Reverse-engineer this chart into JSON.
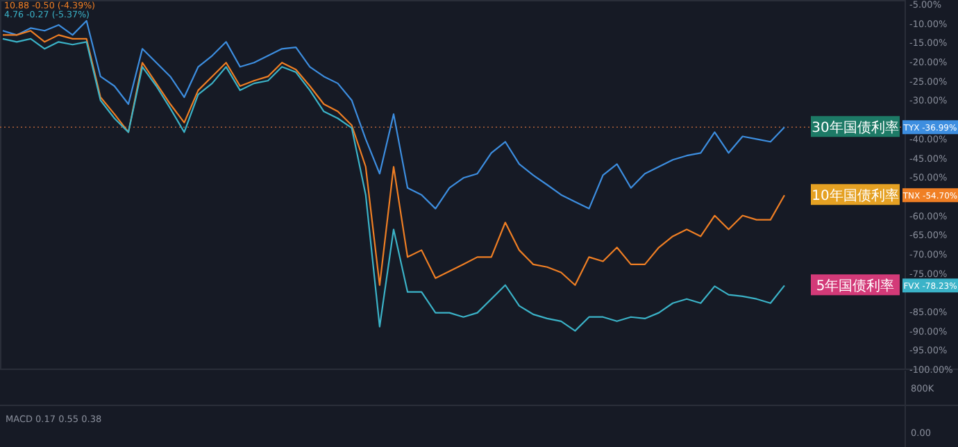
{
  "chart_data": [
    {
      "type": "line",
      "categories": [
        null,
        null,
        null,
        null,
        null,
        null,
        null,
        null,
        null,
        null,
        null,
        null,
        null,
        null,
        null,
        null,
        null,
        null,
        null,
        null,
        null,
        null,
        null,
        null,
        null,
        null,
        null,
        null,
        null,
        null,
        null,
        null,
        null,
        null,
        null,
        null,
        null,
        null,
        null,
        null,
        null,
        null,
        null,
        null,
        null,
        null,
        null,
        null,
        null,
        null,
        null,
        null,
        null,
        null,
        null,
        null,
        null
      ],
      "series": [
        {
          "name": "30年国债利率",
          "color": "#3d8ee0",
          "values": [
            -11.9,
            -13.0,
            -11.2,
            -11.9,
            -10.4,
            -13.0,
            -9.3,
            -23.8,
            -26.3,
            -31.0,
            -16.6,
            -20.2,
            -23.8,
            -29.2,
            -21.3,
            -18.4,
            -14.8,
            -21.3,
            -20.2,
            -18.4,
            -16.6,
            -16.2,
            -21.3,
            -23.8,
            -25.6,
            -30.0,
            -40.1,
            -49.1,
            -33.6,
            -52.8,
            -54.6,
            -58.2,
            -52.8,
            -50.2,
            -49.1,
            -43.7,
            -40.8,
            -46.6,
            -49.5,
            -52.0,
            -54.6,
            -56.4,
            -58.2,
            -49.5,
            -46.6,
            -52.8,
            -49.1,
            -47.3,
            -45.5,
            -44.4,
            -43.7,
            -38.3,
            -43.7,
            -39.4,
            -40.1,
            -40.8,
            -37.0
          ]
        },
        {
          "name": "10年国债利率",
          "color": "#f07f24",
          "values": [
            -13.0,
            -13.0,
            -11.9,
            -14.8,
            -13.0,
            -14.0,
            -14.0,
            -29.2,
            -33.6,
            -38.3,
            -20.2,
            -25.6,
            -31.0,
            -35.8,
            -27.4,
            -23.8,
            -20.2,
            -26.3,
            -24.9,
            -23.8,
            -20.2,
            -22.0,
            -26.3,
            -31.0,
            -32.9,
            -36.5,
            -47.3,
            -78.1,
            -47.3,
            -70.8,
            -69.0,
            -76.3,
            -74.5,
            -72.7,
            -70.8,
            -70.8,
            -61.8,
            -69.0,
            -72.7,
            -73.4,
            -74.8,
            -78.1,
            -70.8,
            -71.9,
            -68.3,
            -72.7,
            -72.7,
            -68.3,
            -65.4,
            -63.6,
            -65.4,
            -60.0,
            -63.6,
            -60.0,
            -61.1,
            -61.1,
            -54.7
          ]
        },
        {
          "name": "5年国债利率",
          "color": "#3bb3c8",
          "values": [
            -14.0,
            -14.8,
            -14.0,
            -16.6,
            -14.8,
            -15.5,
            -14.8,
            -30.0,
            -34.7,
            -38.3,
            -21.3,
            -26.3,
            -32.1,
            -38.3,
            -28.5,
            -25.6,
            -21.3,
            -27.4,
            -25.6,
            -24.9,
            -21.3,
            -22.7,
            -27.4,
            -32.9,
            -34.7,
            -37.2,
            -54.6,
            -88.9,
            -63.6,
            -79.9,
            -79.9,
            -85.3,
            -85.3,
            -86.4,
            -85.3,
            -81.7,
            -78.1,
            -83.5,
            -85.7,
            -86.8,
            -87.5,
            -90.0,
            -86.4,
            -86.4,
            -87.5,
            -86.4,
            -86.8,
            -85.3,
            -82.8,
            -81.7,
            -82.8,
            -78.4,
            -80.6,
            -81.0,
            -81.7,
            -82.8,
            -78.2
          ]
        }
      ],
      "ylim": [
        -100,
        -3.9
      ],
      "legend": "right",
      "yticks": [
        {
          "value": -5,
          "label": "-5.00%"
        },
        {
          "value": -10,
          "label": "-10.00%"
        },
        {
          "value": -15,
          "label": "-15.00%"
        },
        {
          "value": -20,
          "label": "-20.00%"
        },
        {
          "value": -25,
          "label": "-25.00%"
        },
        {
          "value": -30,
          "label": "-30.00%"
        },
        {
          "value": -40,
          "label": "-40.00%"
        },
        {
          "value": -45,
          "label": "-45.00%"
        },
        {
          "value": -50,
          "label": "-50.00%"
        },
        {
          "value": -60,
          "label": "-60.00%"
        },
        {
          "value": -65,
          "label": "-65.00%"
        },
        {
          "value": -70,
          "label": "-70.00%"
        },
        {
          "value": -75,
          "label": "-75.00%"
        },
        {
          "value": -85,
          "label": "-85.00%"
        },
        {
          "value": -90,
          "label": "-90.00%"
        },
        {
          "value": -95,
          "label": "-95.00%"
        },
        {
          "value": -100,
          "label": "-100.00%"
        }
      ],
      "ref_lines": [
        {
          "axis": "y",
          "value": -37.0,
          "color": "#b0603a",
          "line_style": "dotted"
        }
      ],
      "annotations": [
        "10.88 -0.50 (-4.39%)",
        "4.76 -0.27 (-5.37%)",
        "TYX -36.99%",
        "TNX -54.70%",
        "FVX -78.23%"
      ]
    },
    {
      "type": "other",
      "annotations": [
        "800K",
        "MACD 0.17 0.55 0.38",
        "0.00"
      ]
    }
  ]
}
